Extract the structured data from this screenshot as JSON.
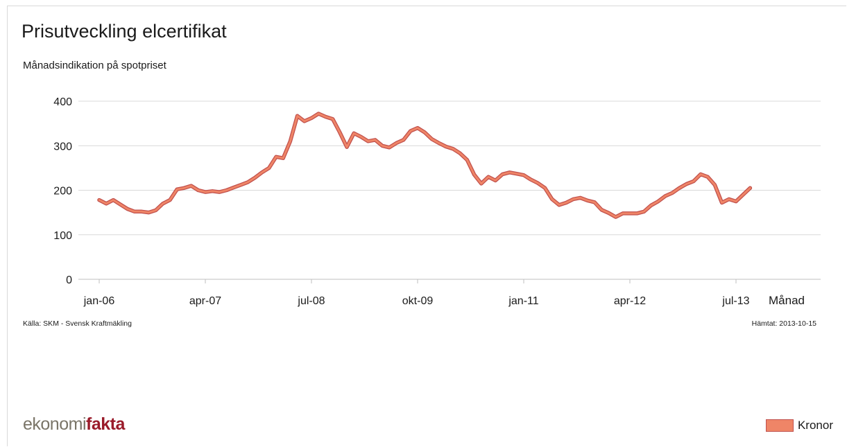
{
  "title": "Prisutveckling elcertifikat",
  "subtitle": "Månadsindikation på spotpriset",
  "source": "Källa: SKM - Svensk Kraftmäkling",
  "fetched": "Hämtat: 2013-10-15",
  "logo": {
    "part1": "ekonomi",
    "part2": "fakta"
  },
  "legend": {
    "label": "Kronor"
  },
  "colors": {
    "line": "#e06a4a",
    "line_edge": "#c0504d",
    "grid": "#d9d9d9",
    "axis": "#bfbfbf"
  },
  "chart_data": {
    "type": "line",
    "title": "Prisutveckling elcertifikat",
    "subtitle": "Månadsindikation på spotpriset",
    "xlabel": "Månad",
    "ylabel": "",
    "ylim": [
      0,
      400
    ],
    "yticks": [
      "0",
      "100",
      "200",
      "300",
      "400"
    ],
    "xticks": [
      "jan-06",
      "apr-07",
      "jul-08",
      "okt-09",
      "jan-11",
      "apr-12",
      "jul-13"
    ],
    "grid": true,
    "legend_position": "bottom-right",
    "series": [
      {
        "name": "Kronor",
        "x": [
          "jan-06",
          "feb-06",
          "mar-06",
          "apr-06",
          "maj-06",
          "jun-06",
          "jul-06",
          "aug-06",
          "sep-06",
          "okt-06",
          "nov-06",
          "dec-06",
          "jan-07",
          "feb-07",
          "mar-07",
          "apr-07",
          "maj-07",
          "jun-07",
          "jul-07",
          "aug-07",
          "sep-07",
          "okt-07",
          "nov-07",
          "dec-07",
          "jan-08",
          "feb-08",
          "mar-08",
          "apr-08",
          "maj-08",
          "jun-08",
          "jul-08",
          "aug-08",
          "sep-08",
          "okt-08",
          "nov-08",
          "dec-08",
          "jan-09",
          "feb-09",
          "mar-09",
          "apr-09",
          "maj-09",
          "jun-09",
          "jul-09",
          "aug-09",
          "sep-09",
          "okt-09",
          "nov-09",
          "dec-09",
          "jan-10",
          "feb-10",
          "mar-10",
          "apr-10",
          "maj-10",
          "jun-10",
          "jul-10",
          "aug-10",
          "sep-10",
          "okt-10",
          "nov-10",
          "dec-10",
          "jan-11",
          "feb-11",
          "mar-11",
          "apr-11",
          "maj-11",
          "jun-11",
          "jul-11",
          "aug-11",
          "sep-11",
          "okt-11",
          "nov-11",
          "dec-11",
          "jan-12",
          "feb-12",
          "mar-12",
          "apr-12",
          "maj-12",
          "jun-12",
          "jul-12",
          "aug-12",
          "sep-12",
          "okt-12",
          "nov-12",
          "dec-12",
          "jan-13",
          "feb-13",
          "mar-13",
          "apr-13",
          "maj-13",
          "jun-13",
          "jul-13",
          "aug-13",
          "sep-13"
        ],
        "values": [
          178,
          170,
          178,
          168,
          158,
          152,
          152,
          150,
          155,
          170,
          178,
          202,
          205,
          210,
          200,
          196,
          198,
          196,
          200,
          206,
          212,
          218,
          228,
          240,
          250,
          275,
          272,
          310,
          367,
          355,
          362,
          372,
          365,
          360,
          330,
          297,
          328,
          320,
          310,
          313,
          300,
          296,
          306,
          313,
          333,
          340,
          330,
          315,
          306,
          298,
          293,
          283,
          268,
          235,
          215,
          230,
          222,
          236,
          240,
          237,
          234,
          224,
          216,
          205,
          180,
          167,
          172,
          180,
          183,
          177,
          173,
          156,
          149,
          140,
          148,
          148,
          148,
          152,
          166,
          175,
          187,
          194,
          205,
          214,
          220,
          236,
          230,
          212,
          172,
          180,
          175,
          190,
          205
        ]
      }
    ]
  }
}
